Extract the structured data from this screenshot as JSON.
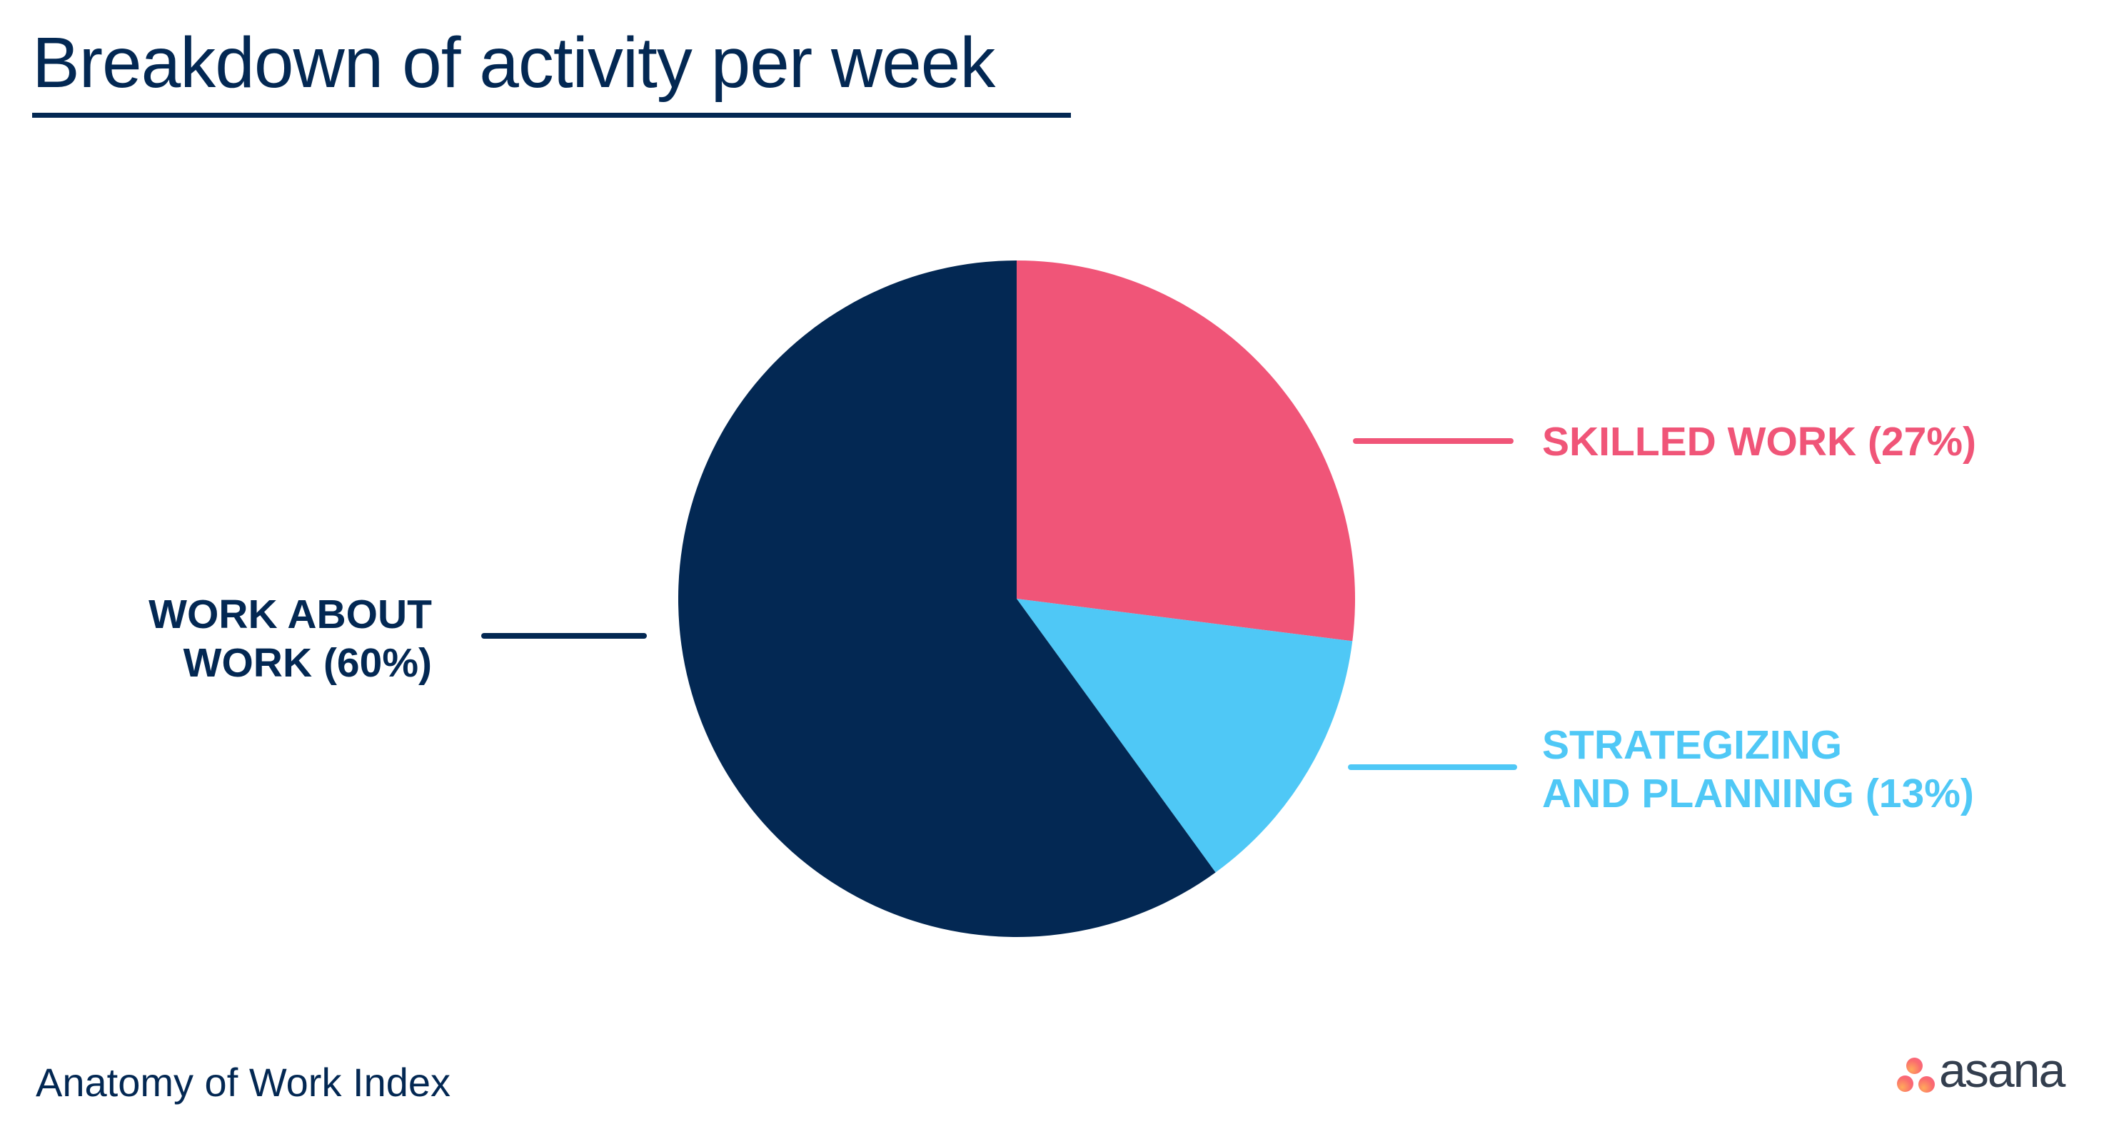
{
  "header": {
    "title": "Breakdown of activity per week"
  },
  "chart_data": {
    "type": "pie",
    "title": "Breakdown of activity per week",
    "direction": "clockwise",
    "start_angle_deg": 0,
    "legend_position": "callout-labels",
    "slices": [
      {
        "id": "skilled-work",
        "name": "Skilled work",
        "value": 27,
        "color": "#F05578",
        "label_lines": [
          "SKILLED WORK (27%)"
        ]
      },
      {
        "id": "strategizing-and-planning",
        "name": "Strategizing and planning",
        "value": 13,
        "color": "#4FC8F6",
        "label_lines": [
          "STRATEGIZING",
          "AND PLANNING (13%)"
        ]
      },
      {
        "id": "work-about-work",
        "name": "Work about work",
        "value": 60,
        "color": "#032853",
        "label_lines": [
          "WORK ABOUT",
          "WORK (60%)"
        ]
      }
    ]
  },
  "footer": {
    "source": "Anatomy of Work Index",
    "logo": {
      "wordmark": "asana"
    }
  },
  "colors": {
    "background": "#FFFFFF",
    "navy": "#032853",
    "pink": "#F05578",
    "blue": "#4FC8F6",
    "title": "#032853",
    "wordmark": "#333E4E"
  }
}
